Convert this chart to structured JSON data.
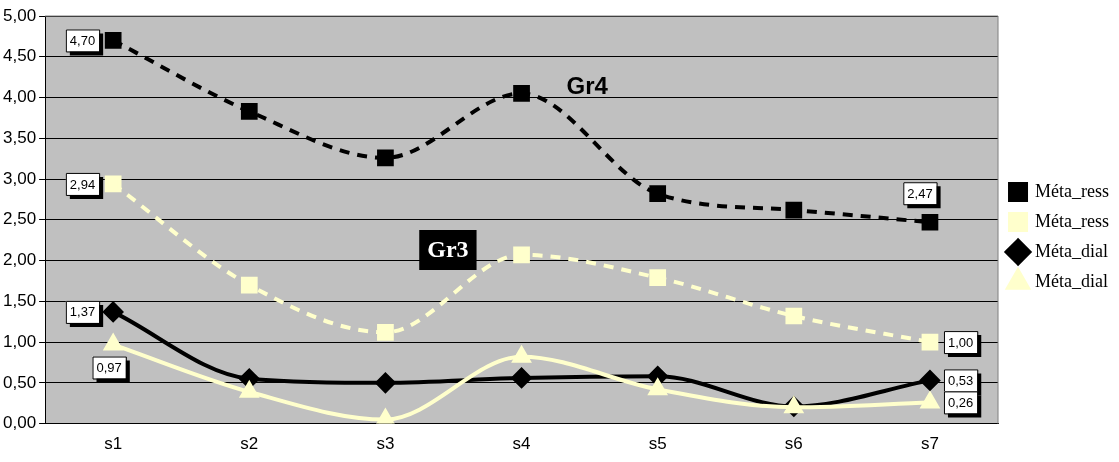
{
  "chart_data": {
    "type": "line",
    "categories": [
      "s1",
      "s2",
      "s3",
      "s4",
      "s5",
      "s6",
      "s7"
    ],
    "series": [
      {
        "name": "Méta_ress",
        "color": "#000000",
        "marker": "square",
        "line_style": "dashed",
        "values": [
          4.7,
          3.83,
          3.26,
          4.05,
          2.82,
          2.62,
          2.47
        ],
        "value_labels": [
          "4,70",
          null,
          null,
          null,
          null,
          null,
          "2,47"
        ]
      },
      {
        "name": "Méta_ress",
        "color": "#ffffcc",
        "marker": "square",
        "line_style": "dashed",
        "values": [
          2.94,
          1.7,
          1.12,
          2.07,
          1.79,
          1.32,
          1.0
        ],
        "value_labels": [
          "2,94",
          null,
          null,
          null,
          null,
          null,
          "1,00"
        ]
      },
      {
        "name": "Méta_dial",
        "color": "#000000",
        "marker": "diamond",
        "line_style": "solid",
        "values": [
          1.37,
          0.55,
          0.5,
          0.56,
          0.58,
          0.21,
          0.53
        ],
        "value_labels": [
          "1,37",
          null,
          null,
          null,
          null,
          null,
          "0,53"
        ]
      },
      {
        "name": "Méta_dial",
        "color": "#ffffcc",
        "marker": "triangle",
        "line_style": "solid",
        "values": [
          0.97,
          0.39,
          0.05,
          0.82,
          0.42,
          0.2,
          0.26
        ],
        "value_labels": [
          "0,97",
          null,
          null,
          null,
          null,
          null,
          "0,26"
        ]
      }
    ],
    "ylim": [
      0,
      5
    ],
    "yticks": [
      {
        "value": 0,
        "label": "0,00"
      },
      {
        "value": 0.5,
        "label": "0,50"
      },
      {
        "value": 1,
        "label": "1,00"
      },
      {
        "value": 1.5,
        "label": "1,50"
      },
      {
        "value": 2,
        "label": "2,00"
      },
      {
        "value": 2.5,
        "label": "2,50"
      },
      {
        "value": 3,
        "label": "3,00"
      },
      {
        "value": 3.5,
        "label": "3,50"
      },
      {
        "value": 4,
        "label": "4,00"
      },
      {
        "value": 4.5,
        "label": "4,50"
      },
      {
        "value": 5,
        "label": "5,00"
      }
    ],
    "annotations": [
      {
        "text": "Gr4",
        "x": "s4",
        "y": 4.05
      },
      {
        "text": "Gr3",
        "x": "s4",
        "y": 2.13
      }
    ],
    "grid": "y",
    "legend": "right"
  }
}
